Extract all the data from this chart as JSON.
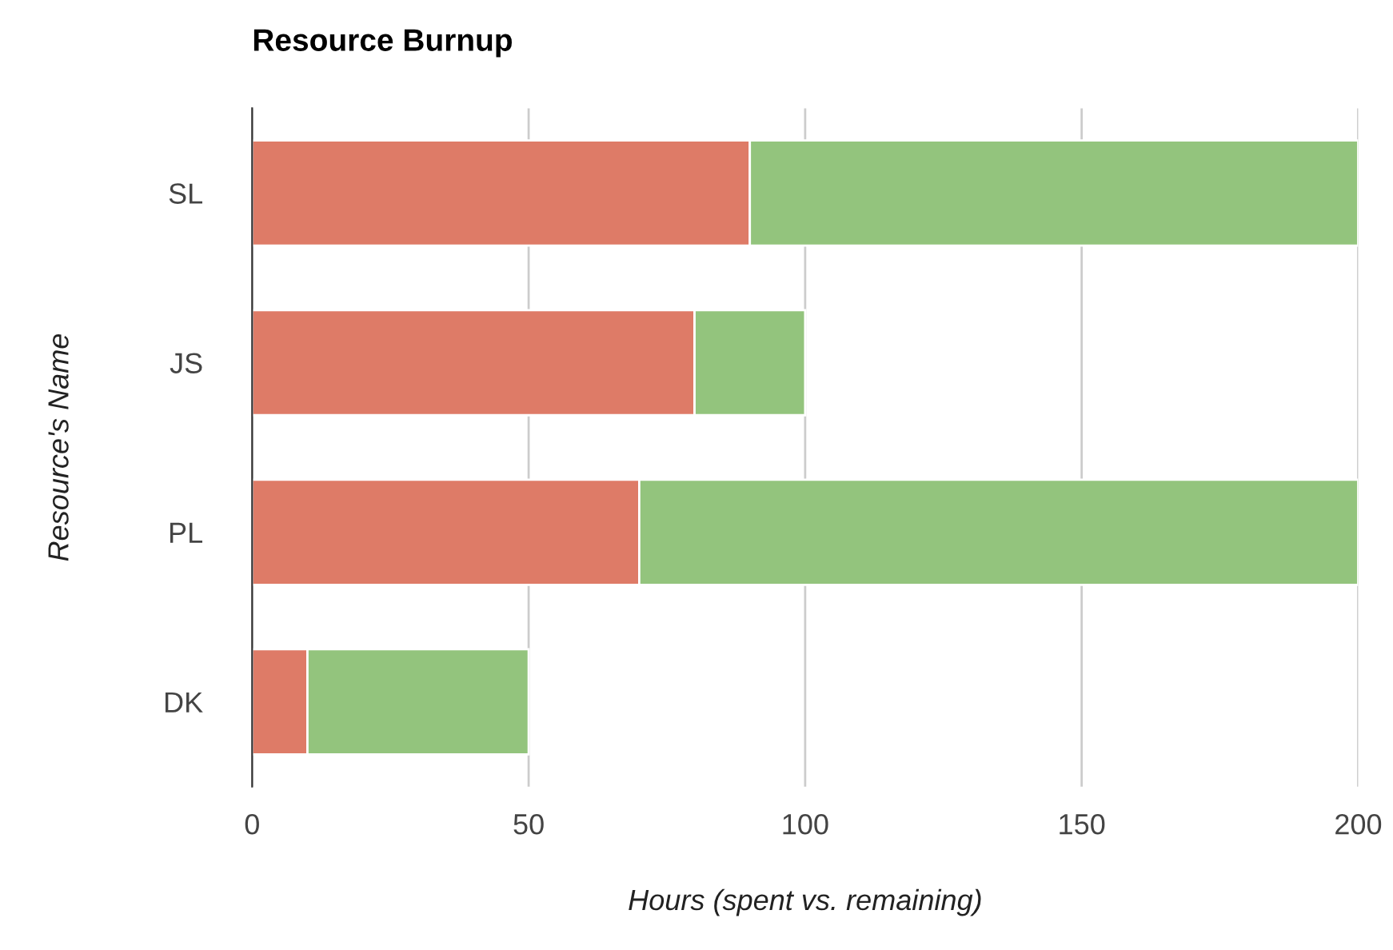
{
  "chart_data": {
    "type": "bar",
    "orientation": "horizontal",
    "stacked": true,
    "title": "Resource Burnup",
    "xlabel": "Hours (spent vs. remaining)",
    "ylabel": "Resource's Name",
    "categories": [
      "SL",
      "JS",
      "PL",
      "DK"
    ],
    "series": [
      {
        "color": "#de7b67",
        "values": [
          90,
          80,
          70,
          10
        ]
      },
      {
        "color": "#93c47d",
        "values": [
          110,
          20,
          130,
          40
        ]
      }
    ],
    "xlim": [
      0,
      200
    ],
    "xticks": [
      0,
      50,
      100,
      150,
      200
    ],
    "grid": "x",
    "legend": false
  }
}
